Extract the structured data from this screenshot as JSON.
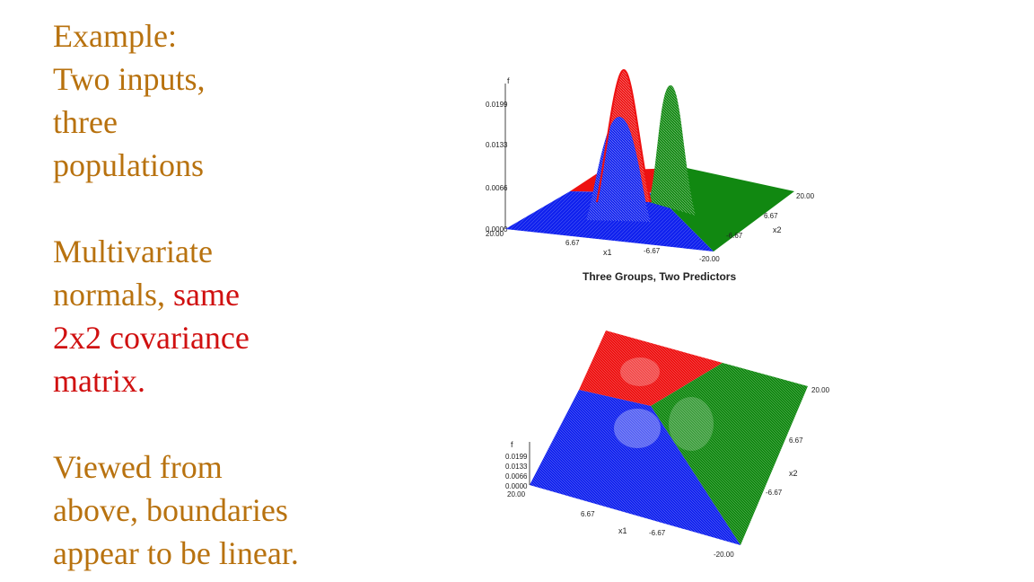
{
  "slide": {
    "block1": [
      "Example:",
      "Two inputs,",
      "three",
      "populations"
    ],
    "block2": {
      "line1": "Multivariate",
      "line2_part1": "normals, ",
      "line2_part2": "same",
      "line3": "2x2 covariance",
      "line4": "matrix."
    },
    "block3": [
      "Viewed from",
      "above, boundaries",
      "appear to be linear."
    ],
    "colors": {
      "text": "#b8720f",
      "emphasis": "#d01010",
      "group_red": "#ee1111",
      "group_green": "#118811",
      "group_blue": "#1122ee"
    }
  },
  "top_plot": {
    "caption": "Three Groups, Two Predictors",
    "f_label": "f",
    "f_ticks": [
      "0.0199",
      "0.0133",
      "0.0066",
      "0.0000"
    ],
    "x1_label": "x1",
    "x1_ticks": [
      "20.00",
      "6.67",
      "-6.67",
      "-20.00"
    ],
    "x2_label": "x2",
    "x2_ticks": [
      "20.00",
      "6.67",
      "-6.67"
    ]
  },
  "bottom_plot": {
    "f_label": "f",
    "f_ticks": [
      "0.0199",
      "0.0133",
      "0.0066",
      "0.0000"
    ],
    "x1_label": "x1",
    "x1_ticks": [
      "20.00",
      "6.67",
      "-6.67",
      "-20.00"
    ],
    "x2_label": "x2",
    "x2_ticks": [
      "20.00",
      "6.67",
      "-6.67"
    ]
  }
}
